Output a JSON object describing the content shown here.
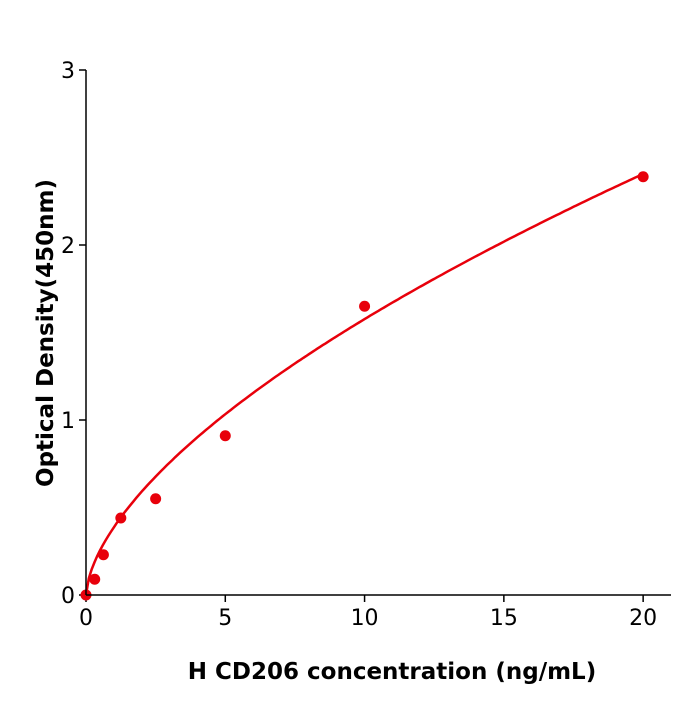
{
  "chart_data": {
    "type": "scatter",
    "title": "",
    "xlabel": "H  CD206 concentration (ng/mL)",
    "ylabel": "Optical Density(450nm)",
    "xlim": [
      0,
      21
    ],
    "ylim": [
      0,
      3
    ],
    "xticks": [
      0,
      5,
      10,
      15,
      20
    ],
    "yticks": [
      0,
      1,
      2,
      3
    ],
    "grid": false,
    "legend": "none",
    "point_color": "#e8000b",
    "curve_color": "#e8000b",
    "curve": "fitted standard curve",
    "x": [
      0,
      0.3125,
      0.625,
      1.25,
      2.5,
      5,
      10,
      20
    ],
    "y": [
      0.0,
      0.09,
      0.23,
      0.44,
      0.55,
      0.91,
      1.65,
      2.39
    ]
  }
}
